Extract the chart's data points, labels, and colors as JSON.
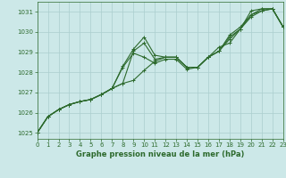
{
  "title": "Graphe pression niveau de la mer (hPa)",
  "background_color": "#cce8e8",
  "grid_color": "#aacece",
  "line_color": "#2d6a2d",
  "series": [
    [
      1025.0,
      1025.8,
      1026.15,
      1026.4,
      1026.55,
      1026.65,
      1026.9,
      1027.2,
      1027.45,
      1027.6,
      1028.1,
      1028.55,
      1028.75,
      1028.75,
      1028.25,
      1028.25,
      1028.75,
      1029.25,
      1029.45,
      1030.15,
      1030.75,
      1031.05,
      1031.15,
      1030.25
    ],
    [
      1025.0,
      1025.8,
      1026.15,
      1026.4,
      1026.55,
      1026.65,
      1026.9,
      1027.2,
      1028.25,
      1028.95,
      1028.75,
      1028.45,
      1028.65,
      1028.65,
      1028.15,
      1028.25,
      1028.75,
      1029.05,
      1029.65,
      1030.15,
      1030.85,
      1031.05,
      1031.15,
      1030.25
    ],
    [
      1025.0,
      1025.8,
      1026.15,
      1026.4,
      1026.55,
      1026.65,
      1026.9,
      1027.2,
      1027.45,
      1029.05,
      1029.45,
      1028.65,
      1028.75,
      1028.75,
      1028.25,
      1028.25,
      1028.75,
      1029.05,
      1029.75,
      1030.15,
      1031.05,
      1031.15,
      1031.15,
      1030.25
    ],
    [
      1025.0,
      1025.8,
      1026.15,
      1026.4,
      1026.55,
      1026.65,
      1026.9,
      1027.2,
      1028.3,
      1029.15,
      1029.75,
      1028.85,
      1028.75,
      1028.75,
      1028.25,
      1028.25,
      1028.75,
      1029.05,
      1029.85,
      1030.25,
      1030.85,
      1031.15,
      1031.15,
      1030.25
    ]
  ],
  "xlim": [
    0,
    23
  ],
  "ylim": [
    1024.7,
    1031.5
  ],
  "yticks": [
    1025,
    1026,
    1027,
    1028,
    1029,
    1030,
    1031
  ],
  "xticks": [
    0,
    1,
    2,
    3,
    4,
    5,
    6,
    7,
    8,
    9,
    10,
    11,
    12,
    13,
    14,
    15,
    16,
    17,
    18,
    19,
    20,
    21,
    22,
    23
  ],
  "marker": "+",
  "markersize": 3,
  "linewidth": 0.8,
  "tick_fontsize": 5.0,
  "xlabel_fontsize": 6.0
}
